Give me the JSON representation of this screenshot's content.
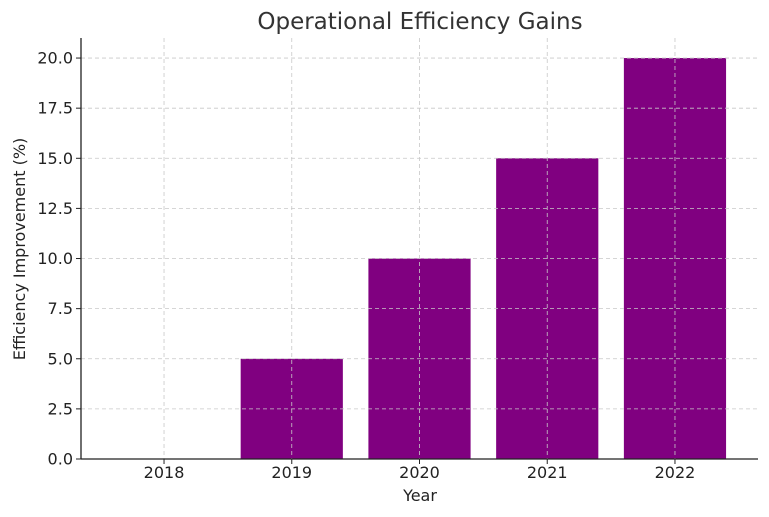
{
  "chart_data": {
    "type": "bar",
    "title": "Operational Efficiency Gains",
    "xlabel": "Year",
    "ylabel": "Efficiency Improvement (%)",
    "categories": [
      "2018",
      "2019",
      "2020",
      "2021",
      "2022"
    ],
    "values": [
      0,
      5,
      10,
      15,
      20
    ],
    "ylim": [
      0,
      21
    ],
    "yticks": [
      0.0,
      2.5,
      5.0,
      7.5,
      10.0,
      12.5,
      15.0,
      17.5,
      20.0
    ],
    "ytick_labels": [
      "0.0",
      "2.5",
      "5.0",
      "7.5",
      "10.0",
      "12.5",
      "15.0",
      "17.5",
      "20.0"
    ],
    "grid": true,
    "bar_color": "#800080"
  }
}
